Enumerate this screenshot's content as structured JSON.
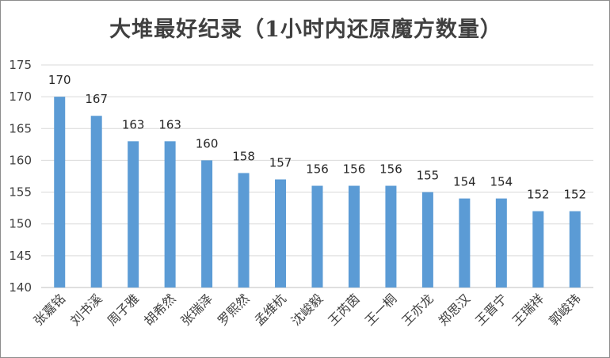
{
  "chart_data": {
    "type": "bar",
    "title": "大堆最好纪录（1小时内还原魔方数量）",
    "categories": [
      "张嘉铭",
      "刘书溪",
      "周子雅",
      "胡希然",
      "张瑞泽",
      "罗熙然",
      "孟维杭",
      "沈峻毅",
      "王芮茵",
      "王一桐",
      "王亦龙",
      "郑思汉",
      "王晋宁",
      "王瑞祥",
      "郭峻玮"
    ],
    "values": [
      170,
      167,
      163,
      163,
      160,
      158,
      157,
      156,
      156,
      156,
      155,
      154,
      154,
      152,
      152
    ],
    "ylim": [
      140,
      175
    ],
    "yticks": [
      140,
      145,
      150,
      155,
      160,
      165,
      170,
      175
    ],
    "grid": true,
    "bar_color": "#5b9bd5",
    "xlabel": "",
    "ylabel": ""
  }
}
